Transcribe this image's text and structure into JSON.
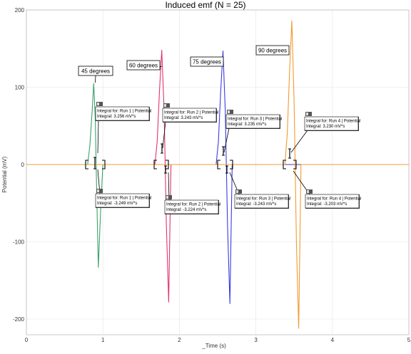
{
  "chart_data": {
    "type": "line",
    "title": "Induced emf (N = 25)",
    "xlabel": "_Time (s)",
    "ylabel": "Potential (mV)",
    "xlim": [
      0,
      5
    ],
    "ylim": [
      -210,
      200
    ],
    "xticks": [
      0,
      1,
      2,
      3,
      4,
      5
    ],
    "yticks": [
      200,
      100,
      0,
      -100,
      -200
    ],
    "grid": true,
    "series": [
      {
        "color": "#3aa36a",
        "x": [
          0,
          0.8,
          0.83,
          0.86,
          0.88,
          0.9,
          0.92,
          0.94,
          0.97,
          1.0,
          5
        ],
        "y": [
          0,
          0,
          25,
          70,
          105,
          60,
          -40,
          -133,
          -60,
          0,
          0
        ]
      },
      {
        "color": "#e0356a",
        "x": [
          0,
          1.68,
          1.71,
          1.74,
          1.77,
          1.8,
          1.83,
          1.86,
          1.89,
          5
        ],
        "y": [
          0,
          0,
          30,
          95,
          148,
          70,
          -80,
          -178,
          0,
          0
        ]
      },
      {
        "color": "#3b3be0",
        "x": [
          0,
          2.48,
          2.51,
          2.54,
          2.57,
          2.6,
          2.63,
          2.66,
          2.69,
          5
        ],
        "y": [
          0,
          0,
          30,
          95,
          147,
          70,
          -80,
          -180,
          0,
          0
        ]
      },
      {
        "color": "#f29a30",
        "x": [
          0,
          3.38,
          3.41,
          3.44,
          3.47,
          3.5,
          3.53,
          3.56,
          3.59,
          5
        ],
        "y": [
          0,
          0,
          40,
          120,
          186,
          80,
          -100,
          -212,
          0,
          0
        ]
      }
    ],
    "annotations": [
      {
        "name": "45-degrees",
        "text": "45 degrees",
        "x": 0.9,
        "y": 106
      },
      {
        "name": "60-degrees",
        "text": "60 degrees",
        "x": 1.77,
        "y": 127
      },
      {
        "name": "75-degrees",
        "text": "75 degrees",
        "x": 2.55,
        "y": 130
      },
      {
        "name": "90-degrees",
        "text": "90 degrees",
        "x": 3.43,
        "y": 146
      }
    ],
    "integral_boxes": [
      {
        "name": "run1-pos",
        "lines": [
          "Integral for: Run 1 | Potential",
          "Integral: 3.256 mV*s"
        ]
      },
      {
        "name": "run1-neg",
        "lines": [
          "Integral for: Run 1 | Potential",
          "Integral: -3.249 mV*s"
        ]
      },
      {
        "name": "run2-pos",
        "lines": [
          "Integral for: Run 2 | Potential",
          "Integral: 3.243 mV*s"
        ]
      },
      {
        "name": "run2-neg",
        "lines": [
          "Integral for: Run 2 | Potential",
          "Integral: -3.224 mV*s"
        ]
      },
      {
        "name": "run3-pos",
        "lines": [
          "Integral for: Run 3 | Potential",
          "Integral: 3.235 mV*s"
        ]
      },
      {
        "name": "run3-neg",
        "lines": [
          "Integral for: Run 3 | Potential",
          "Integral: -3.243 mV*s"
        ]
      },
      {
        "name": "run4-pos",
        "lines": [
          "Integral for: Run 4 | Potential",
          "Integral: 3.230 mV*s"
        ]
      },
      {
        "name": "run4-neg",
        "lines": [
          "Integral for: Run 4 | Potential",
          "Integral: -3.203 mV*s"
        ]
      }
    ]
  }
}
